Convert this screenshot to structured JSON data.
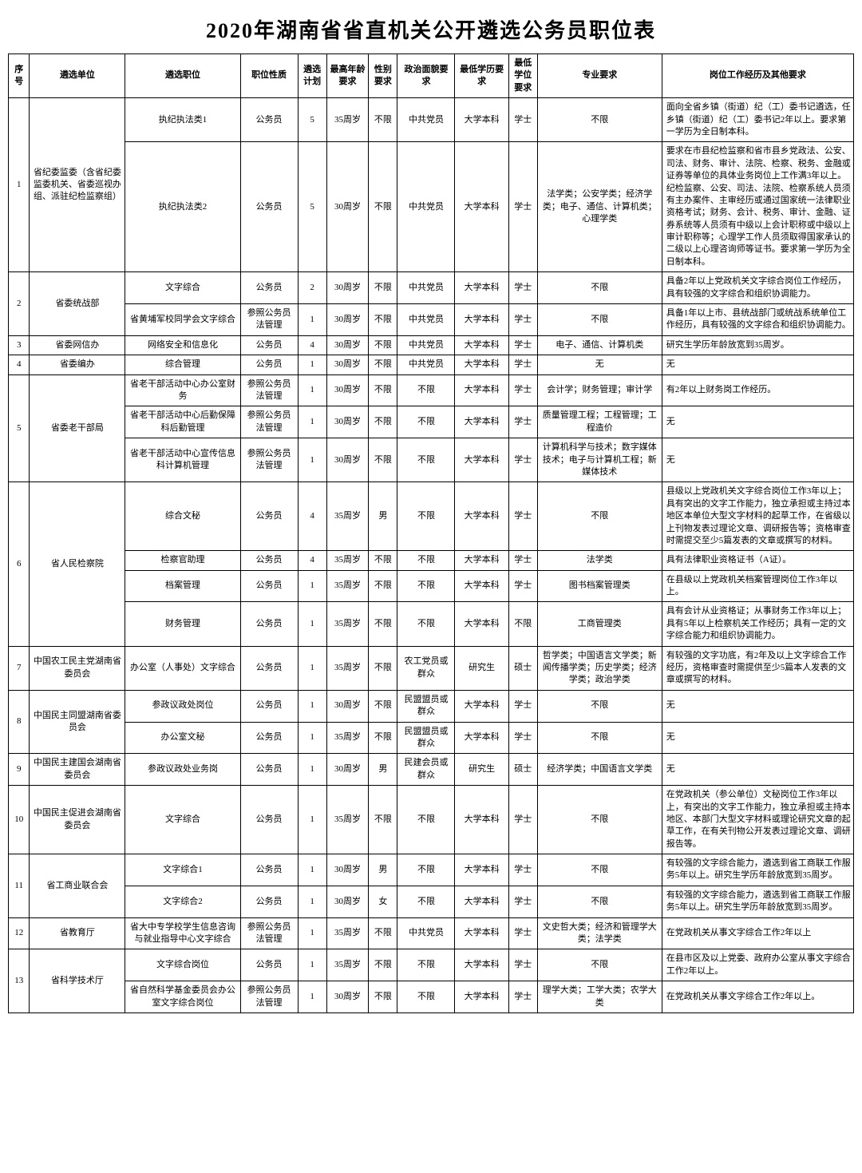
{
  "title": "2020年湖南省省直机关公开遴选公务员职位表",
  "columns": [
    "序号",
    "遴选单位",
    "遴选职位",
    "职位性质",
    "遴选计划",
    "最高年龄要求",
    "性别要求",
    "政治面貌要求",
    "最低学历要求",
    "最低学位要求",
    "专业要求",
    "岗位工作经历及其他要求"
  ],
  "groups": [
    {
      "num": "1",
      "unit": "省纪委监委（含省纪委监委机关、省委巡视办组、派驻纪检监察组）",
      "rows": [
        {
          "pos": "执纪执法类1",
          "nature": "公务员",
          "plan": "5",
          "age": "35周岁",
          "gender": "不限",
          "pol": "中共党员",
          "edu": "大学本科",
          "deg": "学士",
          "major": "不限",
          "req": "面向全省乡镇（街道）纪（工）委书记遴选，任乡镇（街道）纪（工）委书记2年以上。要求第一学历为全日制本科。"
        },
        {
          "pos": "执纪执法类2",
          "nature": "公务员",
          "plan": "5",
          "age": "30周岁",
          "gender": "不限",
          "pol": "中共党员",
          "edu": "大学本科",
          "deg": "学士",
          "major": "法学类；公安学类；经济学类；电子、通信、计算机类；心理学类",
          "req": "要求在市县纪检监察和省市县乡党政法、公安、司法、财务、审计、法院、检察、税务、金融或证券等单位的具体业务岗位上工作满3年以上。纪检监察、公安、司法、法院、检察系统人员须有主办案件、主审经历或通过国家统一法律职业资格考试；财务、会计、税务、审计、金融、证券系统等人员须有中级以上会计职称或中级以上审计职称等；心理学工作人员须取得国家承认的二级以上心理咨询师等证书。要求第一学历为全日制本科。"
        }
      ]
    },
    {
      "num": "2",
      "unit": "省委统战部",
      "rows": [
        {
          "pos": "文字综合",
          "nature": "公务员",
          "plan": "2",
          "age": "30周岁",
          "gender": "不限",
          "pol": "中共党员",
          "edu": "大学本科",
          "deg": "学士",
          "major": "不限",
          "req": "具备2年以上党政机关文字综合岗位工作经历，具有较强的文字综合和组织协调能力。"
        },
        {
          "pos": "省黄埔军校同学会文字综合",
          "nature": "参照公务员法管理",
          "plan": "1",
          "age": "30周岁",
          "gender": "不限",
          "pol": "中共党员",
          "edu": "大学本科",
          "deg": "学士",
          "major": "不限",
          "req": "具备1年以上市、县统战部门或统战系统单位工作经历，具有较强的文字综合和组织协调能力。"
        }
      ]
    },
    {
      "num": "3",
      "unit": "省委网信办",
      "rows": [
        {
          "pos": "网络安全和信息化",
          "nature": "公务员",
          "plan": "4",
          "age": "30周岁",
          "gender": "不限",
          "pol": "中共党员",
          "edu": "大学本科",
          "deg": "学士",
          "major": "电子、通信、计算机类",
          "req": "研究生学历年龄放宽到35周岁。"
        }
      ]
    },
    {
      "num": "4",
      "unit": "省委编办",
      "rows": [
        {
          "pos": "综合管理",
          "nature": "公务员",
          "plan": "1",
          "age": "30周岁",
          "gender": "不限",
          "pol": "中共党员",
          "edu": "大学本科",
          "deg": "学士",
          "major": "无",
          "req": "无"
        }
      ]
    },
    {
      "num": "5",
      "unit": "省委老干部局",
      "rows": [
        {
          "pos": "省老干部活动中心办公室财务",
          "nature": "参照公务员法管理",
          "plan": "1",
          "age": "30周岁",
          "gender": "不限",
          "pol": "不限",
          "edu": "大学本科",
          "deg": "学士",
          "major": "会计学；财务管理；审计学",
          "req": "有2年以上财务岗工作经历。"
        },
        {
          "pos": "省老干部活动中心后勤保障科后勤管理",
          "nature": "参照公务员法管理",
          "plan": "1",
          "age": "30周岁",
          "gender": "不限",
          "pol": "不限",
          "edu": "大学本科",
          "deg": "学士",
          "major": "质量管理工程；工程管理；工程造价",
          "req": "无"
        },
        {
          "pos": "省老干部活动中心宣传信息科计算机管理",
          "nature": "参照公务员法管理",
          "plan": "1",
          "age": "30周岁",
          "gender": "不限",
          "pol": "不限",
          "edu": "大学本科",
          "deg": "学士",
          "major": "计算机科学与技术；数字媒体技术；电子与计算机工程；新媒体技术",
          "req": "无"
        }
      ]
    },
    {
      "num": "6",
      "unit": "省人民检察院",
      "rows": [
        {
          "pos": "综合文秘",
          "nature": "公务员",
          "plan": "4",
          "age": "35周岁",
          "gender": "男",
          "pol": "不限",
          "edu": "大学本科",
          "deg": "学士",
          "major": "不限",
          "req": "县级以上党政机关文字综合岗位工作3年以上；具有突出的文字工作能力，独立承担或主持过本地区本单位大型文字材料的起草工作，在省级以上刊物发表过理论文章、调研报告等；资格审查时需提交至少5篇发表的文章或撰写的材料。"
        },
        {
          "pos": "检察官助理",
          "nature": "公务员",
          "plan": "4",
          "age": "35周岁",
          "gender": "不限",
          "pol": "不限",
          "edu": "大学本科",
          "deg": "学士",
          "major": "法学类",
          "req": "具有法律职业资格证书（A证）。"
        },
        {
          "pos": "档案管理",
          "nature": "公务员",
          "plan": "1",
          "age": "35周岁",
          "gender": "不限",
          "pol": "不限",
          "edu": "大学本科",
          "deg": "学士",
          "major": "图书档案管理类",
          "req": "在县级以上党政机关档案管理岗位工作3年以上。"
        },
        {
          "pos": "财务管理",
          "nature": "公务员",
          "plan": "1",
          "age": "35周岁",
          "gender": "不限",
          "pol": "不限",
          "edu": "大学本科",
          "deg": "不限",
          "major": "工商管理类",
          "req": "具有会计从业资格证；从事财务工作3年以上；具有5年以上检察机关工作经历；具有一定的文字综合能力和组织协调能力。"
        }
      ]
    },
    {
      "num": "7",
      "unit": "中国农工民主党湖南省委员会",
      "rows": [
        {
          "pos": "办公室（人事处）文字综合",
          "nature": "公务员",
          "plan": "1",
          "age": "35周岁",
          "gender": "不限",
          "pol": "农工党员或群众",
          "edu": "研究生",
          "deg": "硕士",
          "major": "哲学类；中国语言文学类；新闻传播学类；历史学类；经济学类；政治学类",
          "req": "有较强的文字功底，有2年及以上文字综合工作经历，资格审查时需提供至少5篇本人发表的文章或撰写的材料。"
        }
      ]
    },
    {
      "num": "8",
      "unit": "中国民主同盟湖南省委员会",
      "rows": [
        {
          "pos": "参政议政处岗位",
          "nature": "公务员",
          "plan": "1",
          "age": "30周岁",
          "gender": "不限",
          "pol": "民盟盟员或群众",
          "edu": "大学本科",
          "deg": "学士",
          "major": "不限",
          "req": "无"
        },
        {
          "pos": "办公室文秘",
          "nature": "公务员",
          "plan": "1",
          "age": "35周岁",
          "gender": "不限",
          "pol": "民盟盟员或群众",
          "edu": "大学本科",
          "deg": "学士",
          "major": "不限",
          "req": "无"
        }
      ]
    },
    {
      "num": "9",
      "unit": "中国民主建国会湖南省委员会",
      "rows": [
        {
          "pos": "参政议政处业务岗",
          "nature": "公务员",
          "plan": "1",
          "age": "30周岁",
          "gender": "男",
          "pol": "民建会员或群众",
          "edu": "研究生",
          "deg": "硕士",
          "major": "经济学类；中国语言文学类",
          "req": "无"
        }
      ]
    },
    {
      "num": "10",
      "unit": "中国民主促进会湖南省委员会",
      "rows": [
        {
          "pos": "文字综合",
          "nature": "公务员",
          "plan": "1",
          "age": "35周岁",
          "gender": "不限",
          "pol": "不限",
          "edu": "大学本科",
          "deg": "学士",
          "major": "不限",
          "req": "在党政机关（参公单位）文秘岗位工作3年以上，有突出的文字工作能力，独立承担或主持本地区、本部门大型文字材料或理论研究文章的起草工作，在有关刊物公开发表过理论文章、调研报告等。"
        }
      ]
    },
    {
      "num": "11",
      "unit": "省工商业联合会",
      "rows": [
        {
          "pos": "文字综合1",
          "nature": "公务员",
          "plan": "1",
          "age": "30周岁",
          "gender": "男",
          "pol": "不限",
          "edu": "大学本科",
          "deg": "学士",
          "major": "不限",
          "req": "有较强的文字综合能力，遴选到省工商联工作服务5年以上。研究生学历年龄放宽到35周岁。"
        },
        {
          "pos": "文字综合2",
          "nature": "公务员",
          "plan": "1",
          "age": "30周岁",
          "gender": "女",
          "pol": "不限",
          "edu": "大学本科",
          "deg": "学士",
          "major": "不限",
          "req": "有较强的文字综合能力，遴选到省工商联工作服务5年以上。研究生学历年龄放宽到35周岁。"
        }
      ]
    },
    {
      "num": "12",
      "unit": "省教育厅",
      "rows": [
        {
          "pos": "省大中专学校学生信息咨询与就业指导中心文字综合",
          "nature": "参照公务员法管理",
          "plan": "1",
          "age": "35周岁",
          "gender": "不限",
          "pol": "中共党员",
          "edu": "大学本科",
          "deg": "学士",
          "major": "文史哲大类；经济和管理学大类；法学类",
          "req": "在党政机关从事文字综合工作2年以上"
        }
      ]
    },
    {
      "num": "13",
      "unit": "省科学技术厅",
      "rows": [
        {
          "pos": "文字综合岗位",
          "nature": "公务员",
          "plan": "1",
          "age": "35周岁",
          "gender": "不限",
          "pol": "不限",
          "edu": "大学本科",
          "deg": "学士",
          "major": "不限",
          "req": "在县市区及以上党委、政府办公室从事文字综合工作2年以上。"
        },
        {
          "pos": "省自然科学基金委员会办公室文字综合岗位",
          "nature": "参照公务员法管理",
          "plan": "1",
          "age": "30周岁",
          "gender": "不限",
          "pol": "不限",
          "edu": "大学本科",
          "deg": "学士",
          "major": "理学大类；工学大类；农学大类",
          "req": "在党政机关从事文字综合工作2年以上。"
        }
      ]
    }
  ]
}
